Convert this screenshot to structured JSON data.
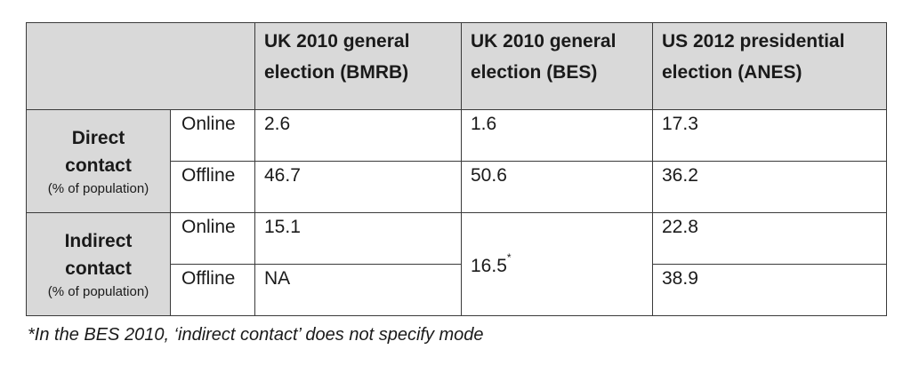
{
  "columns": [
    "UK 2010 general election (BMRB)",
    "UK 2010 general election (BES)",
    "US 2012 presidential election (ANES)"
  ],
  "column_lines": [
    [
      "UK 2010 general",
      "election (BMRB)"
    ],
    [
      "UK 2010 general",
      "election (BES)"
    ],
    [
      "US 2012 presidential",
      "election (ANES)"
    ]
  ],
  "groups": [
    {
      "label_line1": "Direct",
      "label_line2": "contact",
      "sublabel": "(% of population)",
      "rows": [
        {
          "mode": "Online",
          "values": [
            "2.6",
            "1.6",
            "17.3"
          ]
        },
        {
          "mode": "Offline",
          "values": [
            "46.7",
            "50.6",
            "36.2"
          ]
        }
      ]
    },
    {
      "label_line1": "Indirect",
      "label_line2": "contact",
      "sublabel": "(% of population)",
      "rows": [
        {
          "mode": "Online",
          "values": [
            "15.1",
            "16.5",
            "22.8"
          ]
        },
        {
          "mode": "Offline",
          "values": [
            "NA",
            "16.5",
            "38.9"
          ]
        }
      ],
      "merged_value": "16.5",
      "merged_marker": "*"
    }
  ],
  "footnote": "*In the BES 2010, ‘indirect contact’ does not specify mode"
}
